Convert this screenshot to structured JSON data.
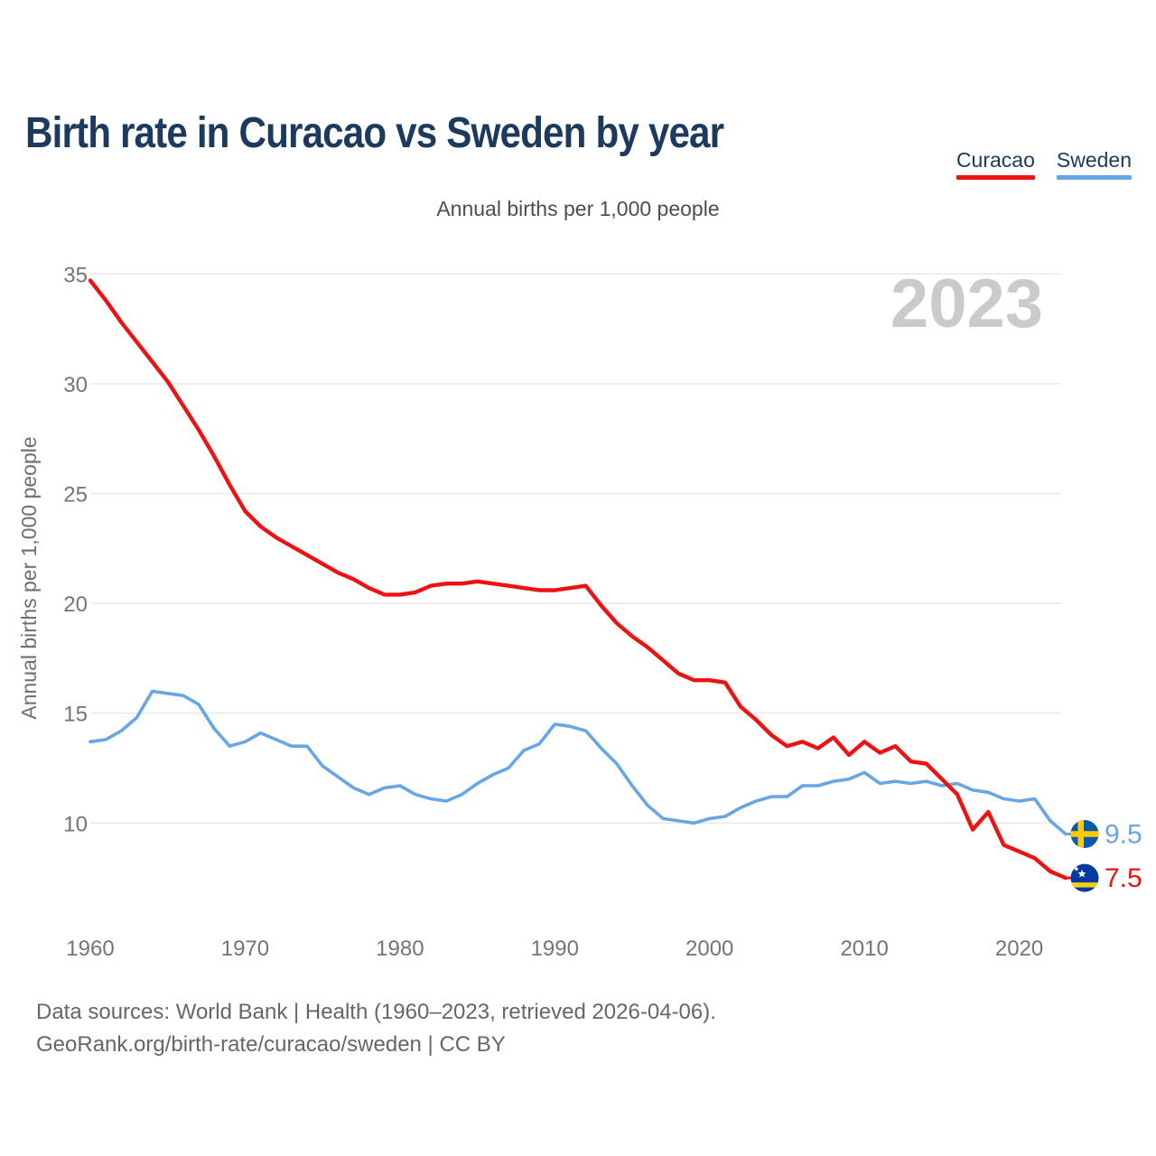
{
  "title": "Birth rate in Curacao vs Sweden by year",
  "subtitle": "Annual births per 1,000 people",
  "watermark": "2023",
  "legend": [
    {
      "label": "Curacao",
      "color": "#EE1212"
    },
    {
      "label": "Sweden",
      "color": "#66A6E4"
    }
  ],
  "footer": {
    "line1": "Data sources: World Bank | Health (1960–2023, retrieved 2026-04-06).",
    "line2": "GeoRank.org/birth-rate/curacao/sweden | CC BY"
  },
  "chart_data": {
    "type": "line",
    "title": "Birth rate in Curacao vs Sweden by year",
    "subtitle": "Annual births per 1,000 people",
    "ylabel": "Annual births per 1,000 people",
    "xlabel": "",
    "x_start": 1960,
    "x_end": 2023,
    "x_ticks": [
      1960,
      1970,
      1980,
      1990,
      2000,
      2010,
      2020
    ],
    "y_ticks": [
      10,
      15,
      20,
      25,
      30,
      35
    ],
    "ylim": [
      7,
      35.5
    ],
    "grid": "horizontal",
    "legend_position": "top-right",
    "colors": {
      "curacao_line": "#EE1212",
      "sweden_line": "#66A6E4",
      "gridline": "#E8E8E8",
      "tick_text": "#747474",
      "watermark_text": "#CACACA",
      "sweden_flag_blue": "#0D57A8",
      "sweden_flag_yellow": "#FECB00",
      "curacao_flag_blue": "#0539A0",
      "curacao_flag_yellow": "#F5D010"
    },
    "series": [
      {
        "name": "Curacao",
        "color": "#EE1212",
        "end_label": "7.5",
        "flag": "curacao",
        "values": [
          34.7,
          33.8,
          32.8,
          31.9,
          31.0,
          30.1,
          29.0,
          27.9,
          26.7,
          25.4,
          24.2,
          23.5,
          23.0,
          22.6,
          22.2,
          21.8,
          21.4,
          21.1,
          20.7,
          20.4,
          20.4,
          20.5,
          20.8,
          20.9,
          20.9,
          21.0,
          20.9,
          20.8,
          20.7,
          20.6,
          20.6,
          20.7,
          20.8,
          19.9,
          19.1,
          18.5,
          18.0,
          17.4,
          16.8,
          16.5,
          16.5,
          16.4,
          15.3,
          14.7,
          14.0,
          13.5,
          13.7,
          13.4,
          13.9,
          13.1,
          13.7,
          13.2,
          13.5,
          12.8,
          12.7,
          12.0,
          11.3,
          9.7,
          10.5,
          9.0,
          8.7,
          8.4,
          7.8,
          7.5
        ]
      },
      {
        "name": "Sweden",
        "color": "#66A6E4",
        "end_label": "9.5",
        "flag": "sweden",
        "values": [
          13.7,
          13.8,
          14.2,
          14.8,
          16.0,
          15.9,
          15.8,
          15.4,
          14.3,
          13.5,
          13.7,
          14.1,
          13.8,
          13.5,
          13.5,
          12.6,
          12.1,
          11.6,
          11.3,
          11.6,
          11.7,
          11.3,
          11.1,
          11.0,
          11.3,
          11.8,
          12.2,
          12.5,
          13.3,
          13.6,
          14.5,
          14.4,
          14.2,
          13.4,
          12.7,
          11.7,
          10.8,
          10.2,
          10.1,
          10.0,
          10.2,
          10.3,
          10.7,
          11.0,
          11.2,
          11.2,
          11.7,
          11.7,
          11.9,
          12.0,
          12.3,
          11.8,
          11.9,
          11.8,
          11.9,
          11.7,
          11.8,
          11.5,
          11.4,
          11.1,
          11.0,
          11.1,
          10.1,
          9.5
        ]
      }
    ]
  }
}
